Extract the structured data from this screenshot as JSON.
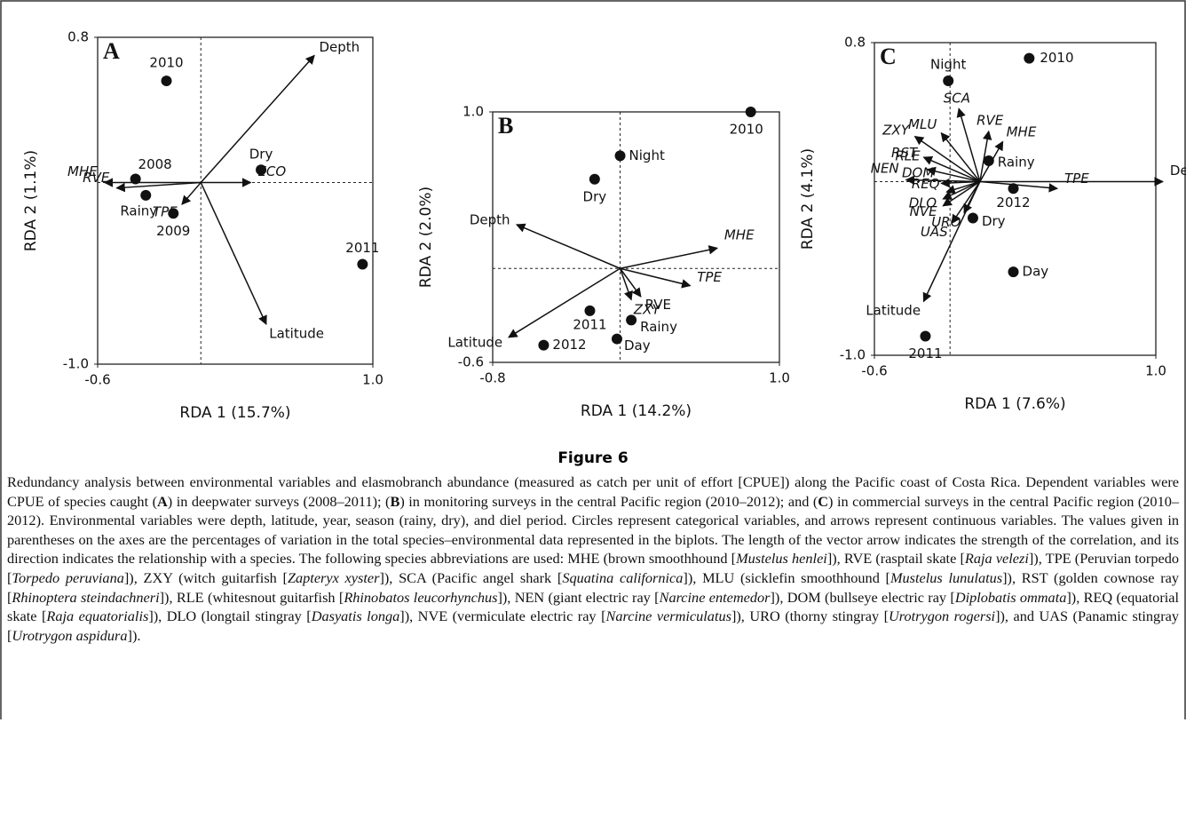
{
  "chart_data": [
    {
      "type": "biplot",
      "panel": "A",
      "xlabel": "RDA 1 (15.7%)",
      "ylabel": "RDA 2 (1.1%)",
      "xlim": [
        -0.6,
        1.0
      ],
      "ylim": [
        -1.0,
        0.8
      ],
      "xticks": [
        -0.6,
        {
          "value": 1,
          "label": "1.0"
        }
      ],
      "yticks": [
        0.8,
        {
          "value": -1,
          "label": "-1.0"
        }
      ],
      "vline": 0,
      "hline": 0,
      "points": {
        "labels": [
          "2010",
          "2008",
          "Dry",
          "Rainy",
          "2009",
          "2011"
        ],
        "x": [
          -0.2,
          -0.38,
          0.35,
          -0.32,
          -0.16,
          0.94
        ],
        "y": [
          0.56,
          0.02,
          0.07,
          -0.07,
          -0.17,
          -0.45
        ]
      },
      "arrows": {
        "labels": [
          "Depth",
          "Latitude",
          "MHE",
          "RVE",
          "ECO",
          "TPE"
        ],
        "x": [
          0.66,
          0.38,
          -0.56,
          -0.49,
          0.29,
          -0.11
        ],
        "y": [
          0.7,
          -0.78,
          0,
          -0.03,
          0,
          -0.12
        ],
        "italic": [
          false,
          false,
          true,
          true,
          true,
          true
        ]
      }
    },
    {
      "type": "biplot",
      "panel": "B",
      "xlabel": "RDA 1 (14.2%)",
      "ylabel": "RDA 2 (2.0%)",
      "xlim": [
        -0.8,
        1.0
      ],
      "ylim": [
        -0.6,
        1.0
      ],
      "xticks": [
        -0.8,
        {
          "value": 1,
          "label": "1.0"
        }
      ],
      "yticks": [
        {
          "value": 1,
          "label": "1.0"
        },
        -0.6
      ],
      "vline": 0,
      "hline": 0,
      "points": {
        "labels": [
          "2010",
          "Night",
          "Dry",
          "2011",
          "Rainy",
          "Day",
          "2012"
        ],
        "x": [
          0.82,
          0,
          -0.16,
          -0.19,
          0.07,
          -0.02,
          -0.48
        ],
        "y": [
          1.0,
          0.72,
          0.57,
          -0.27,
          -0.33,
          -0.45,
          -0.49
        ]
      },
      "arrows": {
        "labels": [
          "Depth",
          "Latitude",
          "MHE",
          "TPE",
          "RVE",
          "ZXY"
        ],
        "x": [
          -0.65,
          -0.7,
          0.61,
          0.44,
          0.13,
          0.07
        ],
        "y": [
          0.28,
          -0.44,
          0.13,
          -0.11,
          -0.18,
          -0.2
        ],
        "italic": [
          false,
          false,
          true,
          true,
          false,
          true
        ]
      }
    },
    {
      "type": "biplot",
      "panel": "C",
      "xlabel": "RDA 1 (7.6%)",
      "ylabel": "RDA 2 (4.1%)",
      "xlim": [
        -0.6,
        1.0
      ],
      "ylim": [
        -1.0,
        0.8
      ],
      "xticks": [
        -0.6,
        {
          "value": 1,
          "label": "1.0"
        }
      ],
      "yticks": [
        0.8,
        {
          "value": -1,
          "label": "-1.0"
        }
      ],
      "vline": -0.17,
      "hline": 0,
      "points": {
        "labels": [
          "Night",
          "2010",
          "Rainy",
          "2012",
          "Dry",
          "Day",
          "2011"
        ],
        "x": [
          -0.18,
          0.28,
          0.05,
          0.19,
          -0.04,
          0.19,
          -0.31
        ],
        "y": [
          0.58,
          0.71,
          0.12,
          -0.04,
          -0.21,
          -0.52,
          -0.89
        ]
      },
      "arrows": {
        "labels": [
          "Depth",
          "TPE",
          "Latitude",
          "UAS",
          "URO",
          "NVE",
          "DLO",
          "REQ",
          "DOM",
          "NEN",
          "RLE",
          "RST",
          "ZXY",
          "MLU",
          "SCA",
          "RVE",
          "MHE"
        ],
        "x": [
          1.04,
          0.44,
          -0.32,
          -0.16,
          -0.09,
          -0.21,
          -0.21,
          -0.19,
          -0.22,
          -0.42,
          -0.3,
          -0.32,
          -0.37,
          -0.22,
          -0.12,
          0.05,
          0.13
        ],
        "y": [
          0,
          -0.04,
          -0.69,
          -0.24,
          -0.18,
          -0.14,
          -0.1,
          -0.06,
          -0.01,
          0.01,
          0.07,
          0.14,
          0.26,
          0.28,
          0.42,
          0.29,
          0.23
        ],
        "italic": [
          false,
          true,
          false,
          true,
          true,
          true,
          true,
          true,
          true,
          true,
          true,
          true,
          true,
          true,
          true,
          true,
          true
        ]
      }
    }
  ],
  "figure": {
    "label": "Figure 6",
    "caption": [
      "Redundancy analysis between environmental variables and elasmobranch abundance (measured as catch per unit of effort [CPUE]) along the Pacific coast of Costa Rica. Dependent variables were CPUE of species caught (",
      {
        "b": "A"
      },
      ") in deepwater surveys (2008–2011); (",
      {
        "b": "B"
      },
      ") in monitoring surveys in the central Pacific region (2010–2012); and (",
      {
        "b": "C"
      },
      ") in commercial surveys in the central Pacific region (2010–2012). Environmental variables were depth, latitude, year, season (rainy, dry), and diel period. Circles represent categorical variables, and arrows represent continuous variables. The values given in parentheses on the axes are the percentages of variation in the total species–environmental data represented in the biplots. The length of the vector arrow indicates the strength of the correlation, and its direction indicates the relationship with a species. The following species abbreviations are used: MHE (brown smoothhound [",
      {
        "i": "Mustelus henlei"
      },
      "]), RVE (rasptail skate [",
      {
        "i": "Raja velezi"
      },
      "]), TPE (Peruvian torpedo [",
      {
        "i": "Torpedo peruviana"
      },
      "]), ZXY (witch guitarfish [",
      {
        "i": "Zapteryx xyster"
      },
      "]), SCA (Pacific angel shark [",
      {
        "i": "Squatina californica"
      },
      "]), MLU (sicklefin smoothhound [",
      {
        "i": "Mustelus lunulatus"
      },
      "]), RST (golden cownose ray [",
      {
        "i": "Rhinoptera steindachneri"
      },
      "]), RLE (whitesnout guitarfish [",
      {
        "i": "Rhinobatos leucorhynchus"
      },
      "]), NEN (giant electric ray [",
      {
        "i": "Narcine entemedor"
      },
      "]), DOM (bullseye electric ray [",
      {
        "i": "Diplobatis ommata"
      },
      "]), REQ (equatorial skate [",
      {
        "i": "Raja equatorialis"
      },
      "]), DLO (longtail stingray [",
      {
        "i": "Dasyatis longa"
      },
      "]), NVE (vermiculate electric ray [",
      {
        "i": "Narcine vermiculatus"
      },
      "]), URO (thorny stingray [",
      {
        "i": "Urotrygon rogersi"
      },
      "]), and UAS (Panamic stingray [",
      {
        "i": "Urotrygon aspidura"
      },
      "])."
    ]
  }
}
